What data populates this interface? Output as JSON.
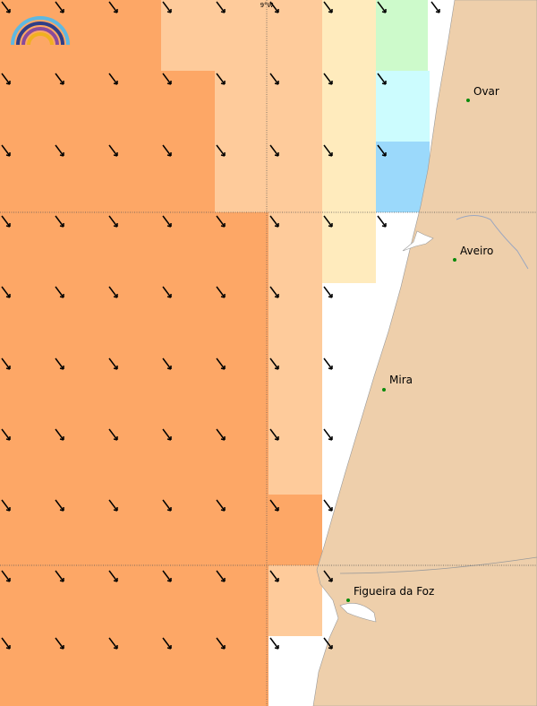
{
  "map": {
    "meridian_label": "9°W",
    "places": [
      {
        "name": "Ovar"
      },
      {
        "name": "Aveiro"
      },
      {
        "name": "Mira"
      },
      {
        "name": "Figueira da Foz"
      }
    ]
  }
}
